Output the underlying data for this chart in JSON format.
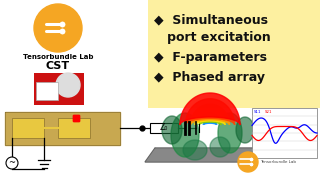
{
  "bg_color": "#ffffff",
  "orange_color": "#f5a623",
  "logo_text": "Tensorbundle Lab",
  "cst_text": "CST",
  "bullet_color": "#111111",
  "right_bg": "#fdf0a0",
  "z0_label": "Z₀",
  "watermark": "Tensorbundle Lab"
}
